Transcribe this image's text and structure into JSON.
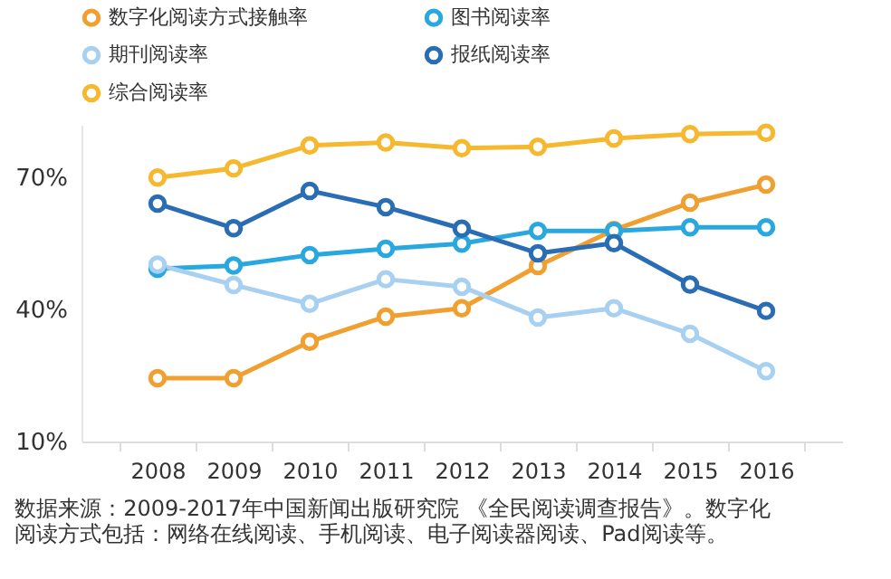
{
  "chart_data": {
    "type": "line",
    "categories": [
      "2008",
      "2009",
      "2010",
      "2011",
      "2012",
      "2013",
      "2014",
      "2015",
      "2016"
    ],
    "series": [
      {
        "name": "数字化阅读方式接触率",
        "color": "#f0a030",
        "values": [
          24.4,
          24.4,
          32.7,
          38.4,
          40.3,
          49.9,
          58.1,
          64.3,
          68.4
        ]
      },
      {
        "name": "图书阅读率",
        "color": "#29a8e0",
        "values": [
          49.3,
          50.0,
          52.4,
          53.8,
          55.0,
          57.9,
          57.9,
          58.7,
          58.7
        ]
      },
      {
        "name": "期刊阅读率",
        "color": "#a8d0f0",
        "values": [
          50.2,
          45.6,
          41.3,
          46.9,
          45.2,
          38.2,
          40.3,
          34.5,
          26.0
        ]
      },
      {
        "name": "报纸阅读率",
        "color": "#2a6db5",
        "values": [
          64.1,
          58.5,
          67.0,
          63.3,
          58.4,
          52.8,
          55.1,
          45.7,
          39.7
        ]
      },
      {
        "name": "综合阅读率",
        "color": "#f5b82e",
        "values": [
          70.0,
          72.1,
          77.3,
          78.0,
          76.7,
          77.0,
          78.9,
          79.9,
          80.2
        ]
      }
    ],
    "ylim": [
      10,
      82
    ],
    "yticks": [
      {
        "value": 10,
        "label": "10%"
      },
      {
        "value": 40,
        "label": "40%"
      },
      {
        "value": 70,
        "label": "70%"
      }
    ],
    "grid": false,
    "legend": "top left",
    "marker": "circle",
    "line_style": "solid",
    "annotations": [
      "数据来源：2009-2017年中国新闻出版研究院 《全民阅读调查报告》。数字化阅读方式包括：网络在线阅读、手机阅读、电子阅读器阅读、Pad阅读等。"
    ]
  }
}
